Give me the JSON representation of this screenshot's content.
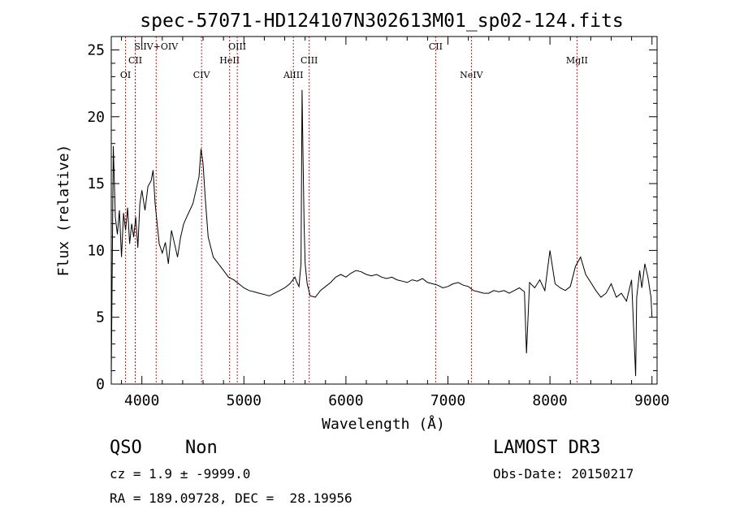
{
  "chart_data": {
    "type": "line",
    "title": "spec-57071-HD124107N302613M01_sp02-124.fits",
    "xlabel": "Wavelength (Å)",
    "ylabel": "Flux (relative)",
    "xlim": [
      3700,
      9050
    ],
    "ylim": [
      0,
      26
    ],
    "xticks": [
      4000,
      5000,
      6000,
      7000,
      8000,
      9000
    ],
    "yticks": [
      0,
      5,
      10,
      15,
      20,
      25
    ],
    "grid": false,
    "line_color": "#000000",
    "marker_color": "#b22222",
    "series": [
      {
        "x": [
          3700,
          3720,
          3740,
          3760,
          3780,
          3800,
          3820,
          3840,
          3860,
          3880,
          3900,
          3920,
          3940,
          3960,
          3980,
          4000,
          4030,
          4060,
          4090,
          4110,
          4130,
          4150,
          4170,
          4200,
          4230,
          4260,
          4290,
          4320,
          4350,
          4380,
          4410,
          4440,
          4470,
          4500,
          4530,
          4560,
          4580,
          4600,
          4620,
          4650,
          4700,
          4750,
          4800,
          4850,
          4900,
          4950,
          5000,
          5050,
          5100,
          5150,
          5200,
          5250,
          5300,
          5350,
          5400,
          5450,
          5480,
          5500,
          5520,
          5540,
          5560,
          5570,
          5580,
          5590,
          5600,
          5620,
          5650,
          5700,
          5750,
          5800,
          5850,
          5900,
          5950,
          6000,
          6050,
          6100,
          6150,
          6200,
          6250,
          6300,
          6350,
          6400,
          6450,
          6500,
          6550,
          6600,
          6650,
          6700,
          6750,
          6800,
          6850,
          6900,
          6950,
          7000,
          7050,
          7100,
          7150,
          7200,
          7250,
          7300,
          7350,
          7400,
          7450,
          7500,
          7550,
          7600,
          7650,
          7700,
          7750,
          7770,
          7800,
          7850,
          7900,
          7950,
          8000,
          8050,
          8100,
          8150,
          8200,
          8250,
          8300,
          8350,
          8400,
          8450,
          8500,
          8550,
          8600,
          8650,
          8700,
          8750,
          8800,
          8840,
          8850,
          8880,
          8900,
          8930,
          8960,
          8990,
          9000
        ],
        "y": [
          0.5,
          17.8,
          12.5,
          11.2,
          13.0,
          9.5,
          12.8,
          11.5,
          13.2,
          10.5,
          12.0,
          11.0,
          12.5,
          10.2,
          13.5,
          14.5,
          13.0,
          14.8,
          15.2,
          16.0,
          13.5,
          12.0,
          10.5,
          9.8,
          10.6,
          9.0,
          11.5,
          10.5,
          9.5,
          11.0,
          12.0,
          12.5,
          13.0,
          13.5,
          14.5,
          15.5,
          17.6,
          16.5,
          14.0,
          11.0,
          9.5,
          9.0,
          8.5,
          8.0,
          7.8,
          7.5,
          7.2,
          7.0,
          6.9,
          6.8,
          6.7,
          6.6,
          6.8,
          7.0,
          7.2,
          7.5,
          7.8,
          8.0,
          7.6,
          7.3,
          9.0,
          22.0,
          17.0,
          12.0,
          9.0,
          7.5,
          6.6,
          6.5,
          7.0,
          7.3,
          7.6,
          8.0,
          8.2,
          8.0,
          8.3,
          8.5,
          8.4,
          8.2,
          8.1,
          8.2,
          8.0,
          7.9,
          8.0,
          7.8,
          7.7,
          7.6,
          7.8,
          7.7,
          7.9,
          7.6,
          7.5,
          7.4,
          7.2,
          7.3,
          7.5,
          7.6,
          7.4,
          7.3,
          7.0,
          6.9,
          6.8,
          6.8,
          7.0,
          6.9,
          7.0,
          6.8,
          7.0,
          7.2,
          6.9,
          2.3,
          7.6,
          7.2,
          7.8,
          7.0,
          10.0,
          7.5,
          7.2,
          7.0,
          7.3,
          8.8,
          9.5,
          8.2,
          7.6,
          7.0,
          6.5,
          6.8,
          7.5,
          6.5,
          6.8,
          6.2,
          7.8,
          0.6,
          6.5,
          8.5,
          7.2,
          9.0,
          8.0,
          6.5,
          5.0
        ]
      }
    ],
    "line_markers": [
      {
        "label": "OI",
        "x": 3840,
        "row": 3
      },
      {
        "label": "CII",
        "x": 3935,
        "row": 2
      },
      {
        "label": "SiIV+OIV",
        "x": 4140,
        "row": 1
      },
      {
        "label": "CIV",
        "x": 4585,
        "row": 3
      },
      {
        "label": "HeII",
        "x": 4860,
        "row": 2
      },
      {
        "label": "OIII",
        "x": 4935,
        "row": 1
      },
      {
        "label": "AlIII",
        "x": 5485,
        "row": 3
      },
      {
        "label": "CIII",
        "x": 5640,
        "row": 2
      },
      {
        "label": "CII",
        "x": 6880,
        "row": 1
      },
      {
        "label": "NeIV",
        "x": 7230,
        "row": 3
      },
      {
        "label": "MgII",
        "x": 8265,
        "row": 2
      }
    ]
  },
  "info": {
    "class_label": "QSO",
    "subclass_label": "Non",
    "cz_text": "cz = 1.9 ± -9999.0",
    "coords_text": "RA = 189.09728, DEC =  28.19956",
    "survey_label": "LAMOST DR3",
    "obs_date_text": "Obs-Date: 20150217"
  }
}
